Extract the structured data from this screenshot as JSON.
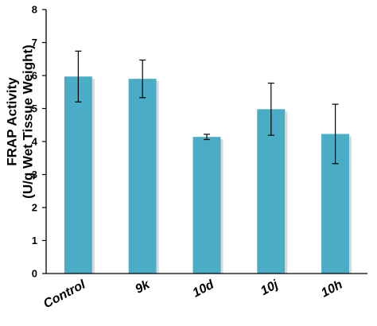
{
  "chart_data": {
    "type": "bar",
    "title": "",
    "xlabel": "",
    "ylabel_lines": [
      "FRAP Activity",
      "(U/g Wet Tissue Weight)"
    ],
    "categories": [
      "Control",
      "9k",
      "10d",
      "10j",
      "10h"
    ],
    "values": [
      5.97,
      5.9,
      4.14,
      4.98,
      4.23
    ],
    "errors": [
      0.77,
      0.57,
      0.08,
      0.79,
      0.9
    ],
    "ylim": [
      0,
      8
    ],
    "yticks": [
      0,
      1,
      2,
      3,
      4,
      5,
      6,
      7,
      8
    ],
    "bar_color": "#4bacc6",
    "grid": false,
    "legend": "none"
  }
}
